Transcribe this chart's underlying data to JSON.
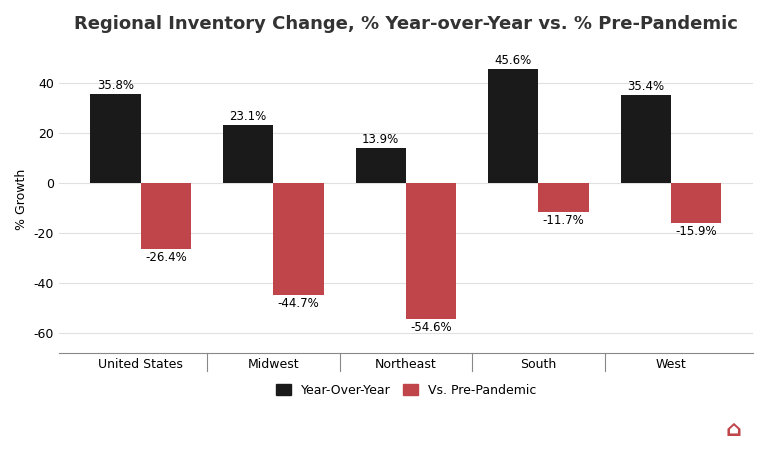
{
  "title": "Regional Inventory Change, % Year-over-Year vs. % Pre-Pandemic",
  "categories": [
    "United States",
    "Midwest",
    "Northeast",
    "South",
    "West"
  ],
  "yoy_values": [
    35.8,
    23.1,
    13.9,
    45.6,
    35.4
  ],
  "prepandemic_values": [
    -26.4,
    -44.7,
    -54.6,
    -11.7,
    -15.9
  ],
  "yoy_color": "#1a1a1a",
  "prepandemic_color": "#c0454a",
  "ylabel": "% Growth",
  "ylim": [
    -68,
    55
  ],
  "yticks": [
    -60,
    -40,
    -20,
    0,
    20,
    40
  ],
  "bar_width": 0.38,
  "legend_labels": [
    "Year-Over-Year",
    "Vs. Pre-Pandemic"
  ],
  "background_color": "#ffffff",
  "grid_color": "#e0e0e0",
  "title_fontsize": 13,
  "label_fontsize": 8.5,
  "tick_fontsize": 9,
  "title_color": "#333333"
}
